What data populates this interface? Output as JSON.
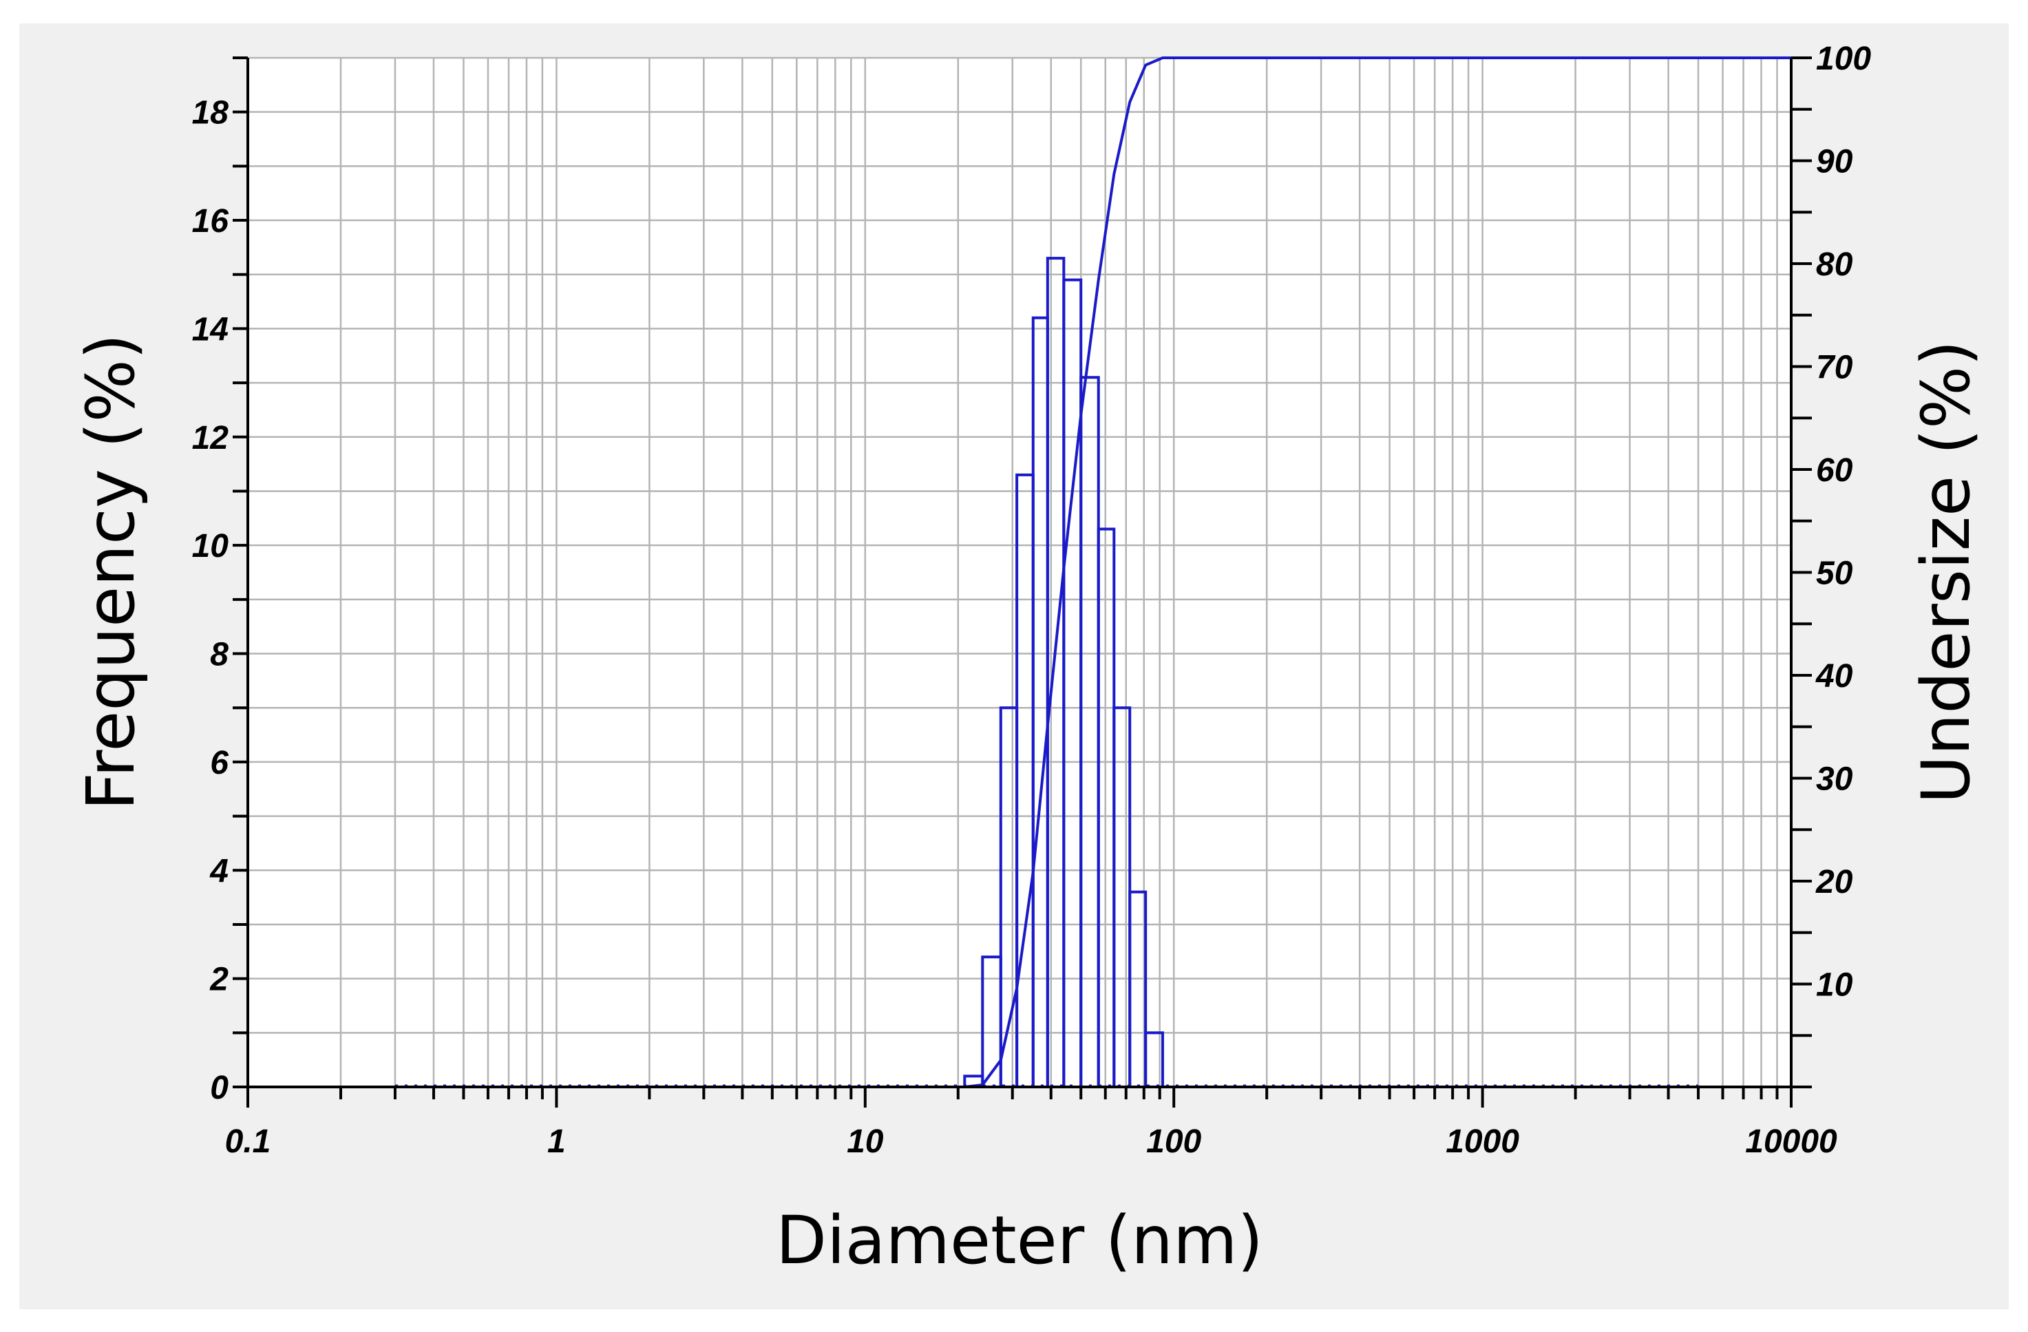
{
  "chart_data": {
    "type": "bar",
    "xlabel": "Diameter (nm)",
    "ylabel": "Frequency (%)",
    "y2label": "Undersize (%)",
    "xscale": "log",
    "xlim": [
      0.1,
      10000
    ],
    "ylim": [
      0,
      19
    ],
    "y2lim": [
      0,
      100
    ],
    "x_ticks": [
      "0.1",
      "1",
      "10",
      "100",
      "1000",
      "10000"
    ],
    "y_ticks": [
      "0",
      "2",
      "4",
      "6",
      "8",
      "10",
      "12",
      "14",
      "16",
      "18"
    ],
    "y2_ticks": [
      "10",
      "20",
      "30",
      "40",
      "50",
      "60",
      "70",
      "80",
      "90",
      "100"
    ],
    "grid": true,
    "color": "#1a1ac8",
    "series": [
      {
        "type": "histogram",
        "bin_edges": [
          21,
          24,
          27.5,
          31,
          35,
          39,
          44,
          50,
          57,
          64,
          72,
          81,
          92
        ],
        "values": [
          0.2,
          2.4,
          7.0,
          11.3,
          14.2,
          15.3,
          14.9,
          13.1,
          10.3,
          7.0,
          3.6,
          1.0
        ]
      },
      {
        "type": "line",
        "axis": "right",
        "x": [
          21,
          24,
          27.5,
          31,
          35,
          39,
          44,
          50,
          57,
          64,
          72,
          81,
          92,
          100,
          10000
        ],
        "y": [
          0,
          0.2,
          2.6,
          9.6,
          20.9,
          35.1,
          50.4,
          65.3,
          78.4,
          88.7,
          95.7,
          99.3,
          100,
          100,
          100
        ]
      }
    ]
  }
}
